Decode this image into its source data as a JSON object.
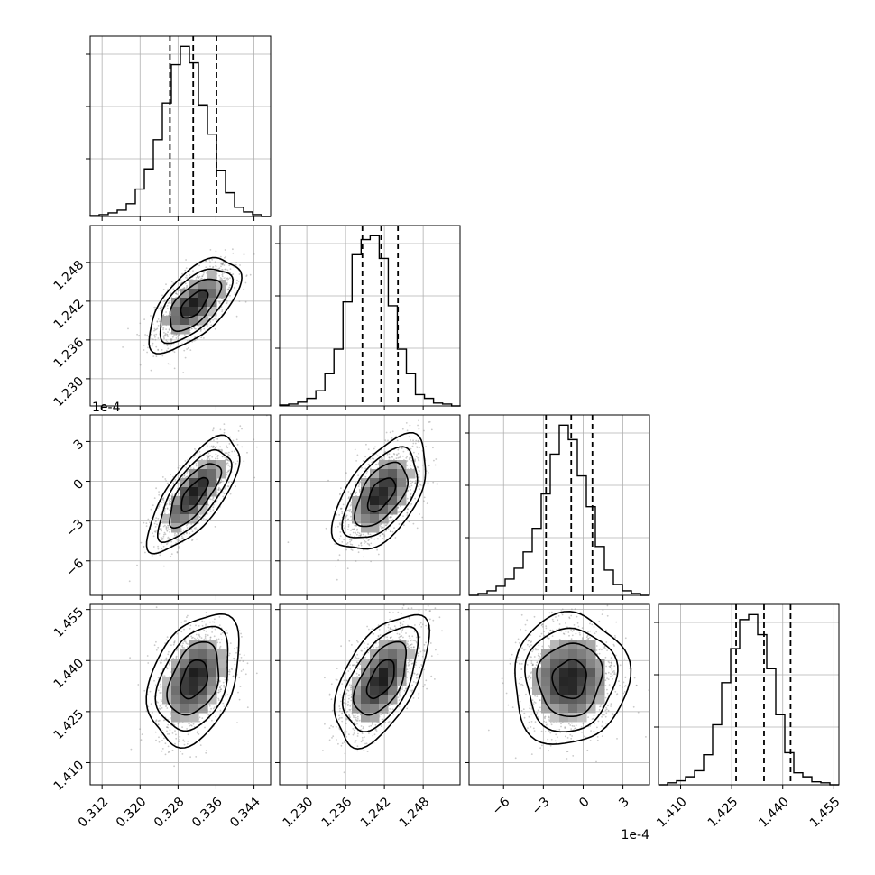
{
  "chart_data": {
    "type": "corner",
    "dimensions": 4,
    "grid": true,
    "quantiles": [
      0.16,
      0.5,
      0.84
    ],
    "contour_levels": 4,
    "params": [
      {
        "index": 0,
        "range": [
          0.3095,
          0.3475
        ],
        "ticks": [
          "0.312",
          "0.320",
          "0.328",
          "0.336",
          "0.344"
        ],
        "tick_values": [
          0.312,
          0.32,
          0.328,
          0.336,
          0.344
        ],
        "quantile_values": [
          0.3263,
          0.3312,
          0.3361
        ],
        "histogram": {
          "bin_edges_start": 0.3095,
          "bin_width": 0.0019,
          "counts": [
            1,
            2,
            4,
            7,
            14,
            30,
            52,
            84,
            124,
            166,
            186,
            168,
            122,
            90,
            50,
            26,
            10,
            5,
            2,
            0
          ]
        }
      },
      {
        "index": 1,
        "range": [
          1.2258,
          1.2537
        ],
        "ticks": [
          "1.230",
          "1.236",
          "1.242",
          "1.248"
        ],
        "tick_values": [
          1.23,
          1.236,
          1.242,
          1.248
        ],
        "quantile_values": [
          1.2386,
          1.2415,
          1.2441
        ],
        "histogram": {
          "bin_edges_start": 1.2258,
          "bin_width": 0.0014,
          "counts": [
            1,
            2,
            4,
            8,
            16,
            34,
            60,
            110,
            160,
            176,
            180,
            156,
            106,
            60,
            34,
            12,
            8,
            3,
            2,
            0
          ]
        }
      },
      {
        "index": 2,
        "scale_label": "1e-4",
        "range": [
          -8.6,
          5.0
        ],
        "ticks": [
          "−6",
          "−3",
          "0",
          "3"
        ],
        "tick_values": [
          -6,
          -3,
          0,
          3
        ],
        "quantile_values": [
          -2.8,
          -0.9,
          0.7
        ],
        "histogram": {
          "bin_edges_start": -8.6,
          "bin_width": 0.68,
          "counts": [
            0,
            2,
            5,
            10,
            18,
            30,
            48,
            74,
            112,
            156,
            188,
            172,
            132,
            98,
            54,
            28,
            12,
            5,
            2,
            0
          ]
        }
      },
      {
        "index": 3,
        "range": [
          1.4035,
          1.4565
        ],
        "ticks": [
          "1.410",
          "1.425",
          "1.440",
          "1.455"
        ],
        "tick_values": [
          1.41,
          1.425,
          1.44,
          1.455
        ],
        "quantile_values": [
          1.4263,
          1.4345,
          1.4423
        ],
        "histogram": {
          "bin_edges_start": 1.4035,
          "bin_width": 0.00265,
          "counts": [
            0,
            2,
            4,
            8,
            14,
            30,
            60,
            102,
            136,
            165,
            170,
            150,
            116,
            70,
            32,
            12,
            8,
            3,
            2,
            0
          ]
        }
      }
    ],
    "panels_2d": [
      {
        "x": 0,
        "y": 1,
        "mean": [
          0.3314,
          1.2415
        ],
        "std": [
          0.004,
          0.003
        ],
        "corr": 0.62
      },
      {
        "x": 0,
        "y": 2,
        "mean": [
          0.3314,
          -1.0
        ],
        "std": [
          0.004,
          1.8
        ],
        "corr": 0.72
      },
      {
        "x": 1,
        "y": 2,
        "mean": [
          1.2415,
          -1.0
        ],
        "std": [
          0.003,
          1.8
        ],
        "corr": 0.55
      },
      {
        "x": 0,
        "y": 3,
        "mean": [
          0.3314,
          1.4345
        ],
        "std": [
          0.004,
          0.008
        ],
        "corr": 0.35
      },
      {
        "x": 1,
        "y": 3,
        "mean": [
          1.2415,
          1.4345
        ],
        "std": [
          0.003,
          0.008
        ],
        "corr": 0.55
      },
      {
        "x": 2,
        "y": 3,
        "mean": [
          -1.0,
          1.4345
        ],
        "std": [
          1.8,
          0.008
        ],
        "corr": 0.05
      }
    ]
  }
}
